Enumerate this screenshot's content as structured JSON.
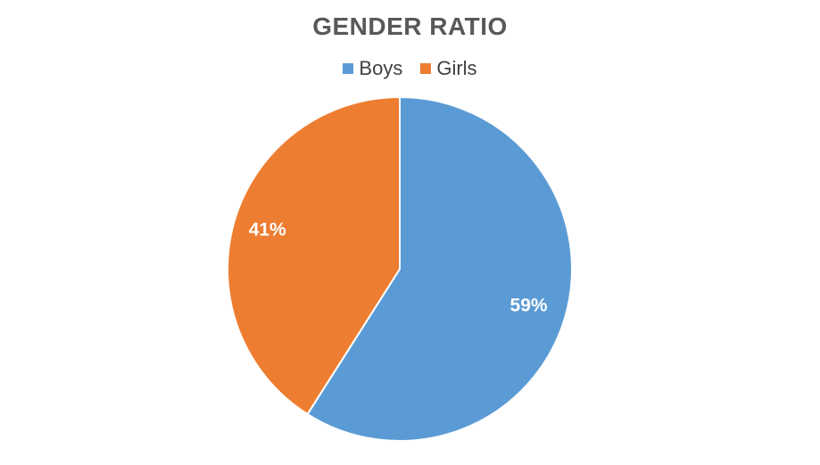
{
  "chart_data": {
    "type": "pie",
    "title": "GENDER RATIO",
    "categories": [
      "Boys",
      "Girls"
    ],
    "values": [
      59,
      41
    ],
    "labels": [
      "59%",
      "41%"
    ],
    "colors": [
      "#5B9BD5",
      "#ED7D31"
    ],
    "legend_position": "top"
  }
}
